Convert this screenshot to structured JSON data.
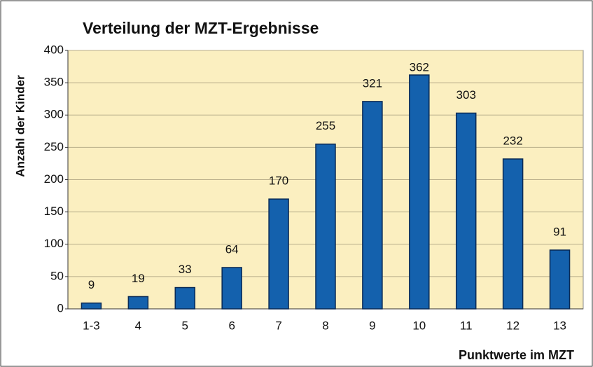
{
  "chart_data": {
    "type": "bar",
    "title": "Verteilung der MZT-Ergebnisse",
    "x_label": "Punktwerte im MZT",
    "y_label": "Anzahl der Kinder",
    "categories": [
      "1-3",
      "4",
      "5",
      "6",
      "7",
      "8",
      "9",
      "10",
      "11",
      "12",
      "13"
    ],
    "values": [
      9,
      19,
      33,
      64,
      170,
      255,
      321,
      362,
      303,
      232,
      91
    ],
    "color": "#1461ad",
    "ylim": [
      0,
      400
    ],
    "yticks": [
      0,
      50,
      100,
      150,
      200,
      250,
      300,
      350,
      400
    ],
    "grid": true
  }
}
